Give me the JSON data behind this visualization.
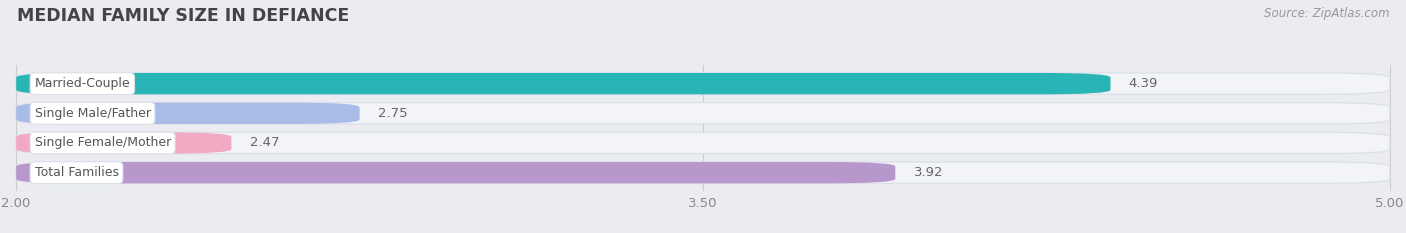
{
  "title": "MEDIAN FAMILY SIZE IN DEFIANCE",
  "source": "Source: ZipAtlas.com",
  "categories": [
    "Married-Couple",
    "Single Male/Father",
    "Single Female/Mother",
    "Total Families"
  ],
  "values": [
    4.39,
    2.75,
    2.47,
    3.92
  ],
  "bar_colors": [
    "#29b5b5",
    "#a8bce8",
    "#f2aac4",
    "#b898cc"
  ],
  "xmin": 2.0,
  "xmax": 5.0,
  "xticks": [
    2.0,
    3.5,
    5.0
  ],
  "bg_color": "#eaecf2",
  "bar_bg_color": "#f2f4f8",
  "bar_bg_outline": "#dde0e8",
  "value_label_color": "#666666",
  "title_color": "#444444",
  "cat_label_color": "#555555",
  "bar_height": 0.72,
  "figsize": [
    14.06,
    2.33
  ],
  "dpi": 100
}
